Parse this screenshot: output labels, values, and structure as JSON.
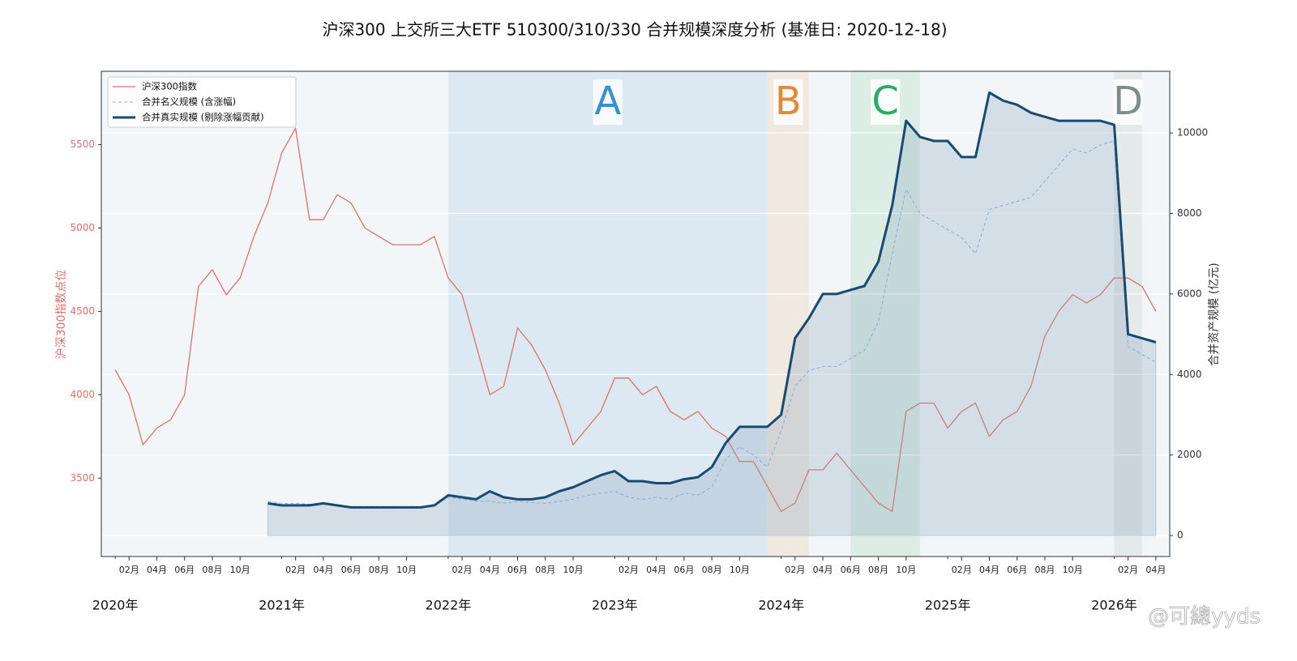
{
  "chart_data": {
    "type": "line",
    "title": "沪深300 上交所三大ETF 510300/310/330 合并规模深度分析 (基准日: 2020-12-18)",
    "ylabel": "沪深300指数点位",
    "y2label": "合并资产规模 (亿元)",
    "watermark": "@可總yyds",
    "x": [
      "2020-01",
      "2020-02",
      "2020-03",
      "2020-04",
      "2020-05",
      "2020-06",
      "2020-07",
      "2020-08",
      "2020-09",
      "2020-10",
      "2020-11",
      "2020-12",
      "2021-01",
      "2021-02",
      "2021-03",
      "2021-04",
      "2021-05",
      "2021-06",
      "2021-07",
      "2021-08",
      "2021-09",
      "2021-10",
      "2021-11",
      "2021-12",
      "2022-01",
      "2022-02",
      "2022-03",
      "2022-04",
      "2022-05",
      "2022-06",
      "2022-07",
      "2022-08",
      "2022-09",
      "2022-10",
      "2022-11",
      "2022-12",
      "2023-01",
      "2023-02",
      "2023-03",
      "2023-04",
      "2023-05",
      "2023-06",
      "2023-07",
      "2023-08",
      "2023-09",
      "2023-10",
      "2023-11",
      "2023-12",
      "2024-01",
      "2024-02",
      "2024-03",
      "2024-04",
      "2024-05",
      "2024-06",
      "2024-07",
      "2024-08",
      "2024-09",
      "2024-10",
      "2024-11",
      "2024-12",
      "2025-01",
      "2025-02",
      "2025-03",
      "2025-04",
      "2025-05",
      "2025-06",
      "2025-07",
      "2025-08",
      "2025-09",
      "2025-10",
      "2025-11",
      "2025-12",
      "2026-01",
      "2026-02",
      "2026-03",
      "2026-04"
    ],
    "series": [
      {
        "name": "沪深300指数",
        "color": "#d9736a",
        "axis": "y",
        "linestyle": "solid",
        "linewidth": 1.3,
        "values": [
          4150,
          4000,
          3700,
          3800,
          3850,
          4000,
          4650,
          4750,
          4600,
          4700,
          4950,
          5150,
          5450,
          5600,
          5050,
          5050,
          5200,
          5150,
          5000,
          4950,
          4900,
          4900,
          4900,
          4950,
          4700,
          4600,
          4300,
          4000,
          4050,
          4400,
          4300,
          4150,
          3950,
          3700,
          3800,
          3900,
          4100,
          4100,
          4000,
          4050,
          3900,
          3850,
          3900,
          3800,
          3750,
          3600,
          3600,
          3450,
          3300,
          3350,
          3550,
          3550,
          3650,
          3550,
          3450,
          3350,
          3300,
          3900,
          3950,
          3950,
          3800,
          3900,
          3950,
          3750,
          3850,
          3900,
          4050,
          4350,
          4500,
          4600,
          4550,
          4600,
          4700,
          4700,
          4650,
          4500
        ]
      },
      {
        "name": "合并名义规模 (含涨幅)",
        "color": "#7fb2e0",
        "axis": "y2",
        "linestyle": "dashed",
        "linewidth": 1,
        "values": [
          null,
          null,
          null,
          null,
          null,
          null,
          null,
          null,
          null,
          null,
          null,
          850,
          800,
          800,
          780,
          800,
          760,
          720,
          720,
          720,
          720,
          720,
          720,
          750,
          950,
          900,
          850,
          850,
          800,
          850,
          820,
          800,
          850,
          900,
          1000,
          1050,
          1100,
          950,
          900,
          950,
          900,
          1050,
          1000,
          1200,
          1900,
          2200,
          2000,
          1700,
          2600,
          3700,
          4100,
          4200,
          4200,
          4400,
          4600,
          5300,
          7000,
          8600,
          8000,
          7800,
          7600,
          7400,
          7000,
          8100,
          8200,
          8300,
          8400,
          8800,
          9200,
          9600,
          9500,
          9700,
          9800,
          4700,
          4500,
          4300
        ]
      },
      {
        "name": "合并真实规模 (剔除涨幅贡献)",
        "color": "#1a4a6e",
        "axis": "y2",
        "linestyle": "solid",
        "linewidth": 3,
        "fill": true,
        "values": [
          null,
          null,
          null,
          null,
          null,
          null,
          null,
          null,
          null,
          null,
          null,
          800,
          750,
          750,
          750,
          800,
          750,
          700,
          700,
          700,
          700,
          700,
          700,
          750,
          1000,
          950,
          900,
          1100,
          950,
          900,
          900,
          950,
          1100,
          1200,
          1350,
          1500,
          1600,
          1350,
          1350,
          1300,
          1300,
          1400,
          1450,
          1700,
          2300,
          2700,
          2700,
          2700,
          3000,
          4900,
          5400,
          6000,
          6000,
          6100,
          6200,
          6800,
          8200,
          10300,
          9900,
          9800,
          9800,
          9400,
          9400,
          11000,
          10800,
          10700,
          10500,
          10400,
          10300,
          10300,
          10300,
          10300,
          10200,
          5000,
          4900,
          4800
        ]
      }
    ],
    "regions": [
      {
        "label": "A",
        "start": "2022-01",
        "end": "2023-11",
        "color": "#3a8fd0"
      },
      {
        "label": "B",
        "start": "2023-12",
        "end": "2024-02",
        "color": "#e08a3a"
      },
      {
        "label": "C",
        "start": "2024-06",
        "end": "2024-10",
        "color": "#2eab62"
      },
      {
        "label": "D",
        "start": "2026-01",
        "end": "2026-02",
        "color": "#7f8c8d"
      }
    ],
    "xlim": [
      "2019-12",
      "2026-05"
    ],
    "xticks": [
      {
        "value": "2020-02",
        "label": "02月"
      },
      {
        "value": "2020-04",
        "label": "04月"
      },
      {
        "value": "2020-06",
        "label": "06月"
      },
      {
        "value": "2020-08",
        "label": "08月"
      },
      {
        "value": "2020-10",
        "label": "10月"
      },
      {
        "value": "2021-02",
        "label": "02月"
      },
      {
        "value": "2021-04",
        "label": "04月"
      },
      {
        "value": "2021-06",
        "label": "06月"
      },
      {
        "value": "2021-08",
        "label": "08月"
      },
      {
        "value": "2021-10",
        "label": "10月"
      },
      {
        "value": "2022-02",
        "label": "02月"
      },
      {
        "value": "2022-04",
        "label": "04月"
      },
      {
        "value": "2022-06",
        "label": "06月"
      },
      {
        "value": "2022-08",
        "label": "08月"
      },
      {
        "value": "2022-10",
        "label": "10月"
      },
      {
        "value": "2023-02",
        "label": "02月"
      },
      {
        "value": "2023-04",
        "label": "04月"
      },
      {
        "value": "2023-06",
        "label": "06月"
      },
      {
        "value": "2023-08",
        "label": "08月"
      },
      {
        "value": "2023-10",
        "label": "10月"
      },
      {
        "value": "2024-02",
        "label": "02月"
      },
      {
        "value": "2024-04",
        "label": "04月"
      },
      {
        "value": "2024-06",
        "label": "06月"
      },
      {
        "value": "2024-08",
        "label": "08月"
      },
      {
        "value": "2024-10",
        "label": "10月"
      },
      {
        "value": "2025-02",
        "label": "02月"
      },
      {
        "value": "2025-04",
        "label": "04月"
      },
      {
        "value": "2025-06",
        "label": "06月"
      },
      {
        "value": "2025-08",
        "label": "08月"
      },
      {
        "value": "2025-10",
        "label": "10月"
      },
      {
        "value": "2026-02",
        "label": "02月"
      },
      {
        "value": "2026-04",
        "label": "04月"
      }
    ],
    "xticks_major": [
      {
        "value": "2020-01",
        "label": "2020年"
      },
      {
        "value": "2021-01",
        "label": "2021年"
      },
      {
        "value": "2022-01",
        "label": "2022年"
      },
      {
        "value": "2023-01",
        "label": "2023年"
      },
      {
        "value": "2024-01",
        "label": "2024年"
      },
      {
        "value": "2025-01",
        "label": "2025年"
      },
      {
        "value": "2026-01",
        "label": "2026年"
      }
    ],
    "ylim": [
      3030,
      5940
    ],
    "yticks": [
      3500,
      4000,
      4500,
      5000,
      5500
    ],
    "y2lim": [
      -520,
      11530
    ],
    "y2ticks": [
      0,
      2000,
      4000,
      6000,
      8000,
      10000
    ],
    "grid": true,
    "legend": "upper left"
  }
}
